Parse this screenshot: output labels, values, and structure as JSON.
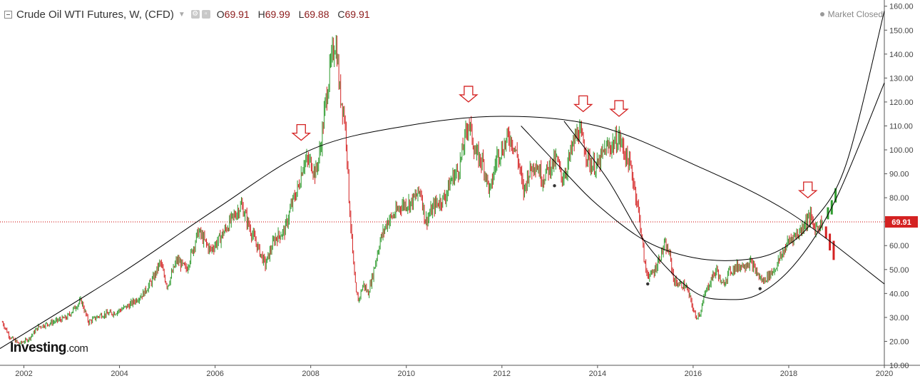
{
  "header": {
    "title": "Crude Oil WTI Futures, W, (CFD)",
    "open_label": "O",
    "open": "69.91",
    "high_label": "H",
    "high": "69.99",
    "low_label": "L",
    "low": "69.88",
    "close_label": "C",
    "close": "69.91",
    "caret_icon": "chevron-down-icon",
    "settings_icons": [
      "gear-icon",
      "dialog-icon"
    ]
  },
  "status": {
    "label": "Market Closed"
  },
  "logo": {
    "name": "Investing",
    "suffix": ".com"
  },
  "colors": {
    "up": "#2e9b2e",
    "down": "#d42222",
    "price_line": "#cc0000",
    "price_tag": "#d42222",
    "arrow": "#d42222",
    "curve": "#000000"
  },
  "chart_data": {
    "type": "candlestick",
    "title": "Crude Oil WTI Futures, W, (CFD)",
    "timeframe": "W",
    "xlim": [
      2001.5,
      2020.0
    ],
    "ylim": [
      10,
      162
    ],
    "x_ticks": [
      "2002",
      "2004",
      "2006",
      "2008",
      "2010",
      "2012",
      "2014",
      "2016",
      "2018",
      "2020"
    ],
    "x_tick_values": [
      2002,
      2004,
      2006,
      2008,
      2010,
      2012,
      2014,
      2016,
      2018,
      2020
    ],
    "y_ticks": [
      "10.00",
      "20.00",
      "30.00",
      "40.00",
      "50.00",
      "60.00",
      "70.00",
      "80.00",
      "90.00",
      "100.00",
      "110.00",
      "120.00",
      "130.00",
      "140.00",
      "150.00",
      "160.00"
    ],
    "y_tick_values": [
      10,
      20,
      30,
      40,
      50,
      60,
      70,
      80,
      90,
      100,
      110,
      120,
      130,
      140,
      150,
      160
    ],
    "axis_side": "right",
    "last_price": 69.91,
    "last_price_label": "69.91",
    "price_path": [
      [
        2001.55,
        28
      ],
      [
        2001.7,
        22
      ],
      [
        2001.9,
        19
      ],
      [
        2002.1,
        21
      ],
      [
        2002.3,
        26
      ],
      [
        2002.6,
        28
      ],
      [
        2002.9,
        30
      ],
      [
        2003.1,
        35
      ],
      [
        2003.2,
        37
      ],
      [
        2003.35,
        28
      ],
      [
        2003.6,
        31
      ],
      [
        2003.9,
        32
      ],
      [
        2004.2,
        35
      ],
      [
        2004.5,
        40
      ],
      [
        2004.7,
        46
      ],
      [
        2004.85,
        53
      ],
      [
        2005.0,
        43
      ],
      [
        2005.2,
        54
      ],
      [
        2005.4,
        50
      ],
      [
        2005.65,
        66
      ],
      [
        2005.9,
        58
      ],
      [
        2006.1,
        63
      ],
      [
        2006.35,
        71
      ],
      [
        2006.55,
        77
      ],
      [
        2006.75,
        66
      ],
      [
        2006.9,
        59
      ],
      [
        2007.05,
        52
      ],
      [
        2007.25,
        63
      ],
      [
        2007.45,
        66
      ],
      [
        2007.6,
        77
      ],
      [
        2007.75,
        85
      ],
      [
        2007.85,
        95
      ],
      [
        2008.0,
        95
      ],
      [
        2008.1,
        90
      ],
      [
        2008.2,
        100
      ],
      [
        2008.3,
        118
      ],
      [
        2008.4,
        133
      ],
      [
        2008.5,
        145
      ],
      [
        2008.55,
        141
      ],
      [
        2008.6,
        125
      ],
      [
        2008.7,
        115
      ],
      [
        2008.75,
        103
      ],
      [
        2008.8,
        80
      ],
      [
        2008.85,
        65
      ],
      [
        2008.9,
        50
      ],
      [
        2008.95,
        40
      ],
      [
        2009.0,
        37
      ],
      [
        2009.1,
        44
      ],
      [
        2009.2,
        40
      ],
      [
        2009.3,
        48
      ],
      [
        2009.45,
        62
      ],
      [
        2009.6,
        70
      ],
      [
        2009.75,
        73
      ],
      [
        2009.9,
        77
      ],
      [
        2010.1,
        78
      ],
      [
        2010.3,
        83
      ],
      [
        2010.4,
        70
      ],
      [
        2010.6,
        77
      ],
      [
        2010.8,
        80
      ],
      [
        2010.95,
        88
      ],
      [
        2011.1,
        92
      ],
      [
        2011.2,
        102
      ],
      [
        2011.3,
        112
      ],
      [
        2011.35,
        108
      ],
      [
        2011.45,
        98
      ],
      [
        2011.6,
        95
      ],
      [
        2011.75,
        82
      ],
      [
        2011.9,
        98
      ],
      [
        2012.0,
        100
      ],
      [
        2012.15,
        106
      ],
      [
        2012.25,
        102
      ],
      [
        2012.35,
        95
      ],
      [
        2012.45,
        82
      ],
      [
        2012.55,
        90
      ],
      [
        2012.7,
        95
      ],
      [
        2012.85,
        88
      ],
      [
        2013.0,
        93
      ],
      [
        2013.15,
        96
      ],
      [
        2013.25,
        88
      ],
      [
        2013.35,
        92
      ],
      [
        2013.5,
        103
      ],
      [
        2013.6,
        108
      ],
      [
        2013.7,
        103
      ],
      [
        2013.85,
        94
      ],
      [
        2014.0,
        93
      ],
      [
        2014.15,
        100
      ],
      [
        2014.3,
        102
      ],
      [
        2014.45,
        105
      ],
      [
        2014.55,
        100
      ],
      [
        2014.7,
        92
      ],
      [
        2014.8,
        82
      ],
      [
        2014.9,
        68
      ],
      [
        2015.0,
        50
      ],
      [
        2015.1,
        47
      ],
      [
        2015.2,
        50
      ],
      [
        2015.3,
        55
      ],
      [
        2015.4,
        60
      ],
      [
        2015.5,
        57
      ],
      [
        2015.6,
        45
      ],
      [
        2015.7,
        44
      ],
      [
        2015.85,
        43
      ],
      [
        2015.95,
        37
      ],
      [
        2016.05,
        30
      ],
      [
        2016.15,
        32
      ],
      [
        2016.25,
        40
      ],
      [
        2016.4,
        47
      ],
      [
        2016.5,
        50
      ],
      [
        2016.6,
        43
      ],
      [
        2016.75,
        49
      ],
      [
        2016.9,
        51
      ],
      [
        2017.05,
        52
      ],
      [
        2017.2,
        53
      ],
      [
        2017.35,
        48
      ],
      [
        2017.45,
        45
      ],
      [
        2017.55,
        47
      ],
      [
        2017.7,
        50
      ],
      [
        2017.85,
        56
      ],
      [
        2018.0,
        62
      ],
      [
        2018.1,
        64
      ],
      [
        2018.2,
        65
      ],
      [
        2018.35,
        70
      ],
      [
        2018.45,
        72
      ],
      [
        2018.55,
        67
      ],
      [
        2018.65,
        69
      ],
      [
        2018.72,
        69.91
      ]
    ],
    "markers_up": [
      [
        2018.82,
        76,
        71
      ],
      [
        2018.9,
        79,
        73
      ],
      [
        2018.98,
        84,
        78
      ]
    ],
    "markers_down": [
      [
        2018.78,
        68,
        63
      ],
      [
        2018.86,
        65,
        58
      ],
      [
        2018.94,
        62,
        54
      ]
    ],
    "arrows": [
      [
        2007.8,
        104
      ],
      [
        2011.3,
        120
      ],
      [
        2013.7,
        116
      ],
      [
        2014.45,
        114
      ],
      [
        2018.4,
        80
      ]
    ],
    "arc_dots": [
      [
        2013.1,
        85
      ],
      [
        2015.05,
        44
      ],
      [
        2017.4,
        42
      ]
    ],
    "curves": [
      [
        [
          2001.5,
          17
        ],
        [
          2004,
          48
        ],
        [
          2006,
          75
        ],
        [
          2008,
          100
        ],
        [
          2010,
          110
        ],
        [
          2012,
          114
        ],
        [
          2014,
          110
        ],
        [
          2016,
          94
        ],
        [
          2018,
          74
        ],
        [
          2020,
          44
        ]
      ],
      [
        [
          2012.4,
          110
        ],
        [
          2013.3,
          91
        ],
        [
          2014.0,
          77
        ],
        [
          2015.0,
          62
        ],
        [
          2016.0,
          55
        ],
        [
          2017.0,
          54
        ],
        [
          2017.8,
          58
        ],
        [
          2018.5,
          70
        ],
        [
          2019.2,
          94
        ],
        [
          2020.0,
          158
        ]
      ],
      [
        [
          2013.3,
          112
        ],
        [
          2014.2,
          88
        ],
        [
          2015.05,
          60
        ],
        [
          2016.0,
          41
        ],
        [
          2016.7,
          37.5
        ],
        [
          2017.4,
          40
        ],
        [
          2018.2,
          54
        ],
        [
          2019.0,
          80
        ],
        [
          2020.0,
          128
        ]
      ]
    ]
  }
}
